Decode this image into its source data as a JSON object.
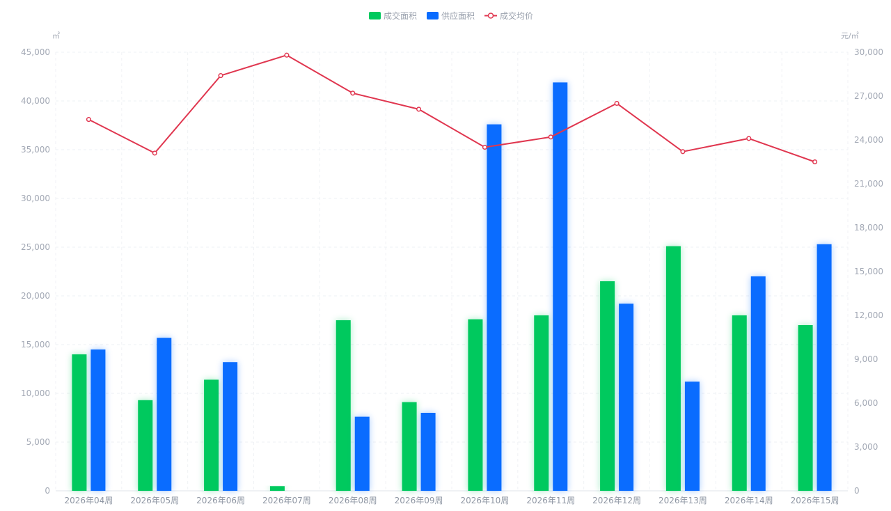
{
  "chart_data": {
    "type": "bar",
    "categories": [
      "2026年04周",
      "2026年05周",
      "2026年06周",
      "2026年07周",
      "2026年08周",
      "2026年09周",
      "2026年10周",
      "2026年11周",
      "2026年12周",
      "2026年13周",
      "2026年14周",
      "2026年15周"
    ],
    "series": [
      {
        "name": "成交面积",
        "type": "bar",
        "axis": "left",
        "color": "#00c95e",
        "values": [
          14000,
          9300,
          11400,
          480,
          17500,
          9100,
          17600,
          18000,
          21500,
          25100,
          18000,
          17000
        ]
      },
      {
        "name": "供应面积",
        "type": "bar",
        "axis": "left",
        "color": "#0a6cff",
        "values": [
          14500,
          15700,
          13200,
          null,
          7600,
          8000,
          37600,
          41900,
          19200,
          11200,
          22000,
          25300
        ]
      },
      {
        "name": "成交均价",
        "type": "line",
        "axis": "right",
        "color": "#e0364f",
        "values": [
          25400,
          23100,
          28400,
          29800,
          27200,
          26100,
          23500,
          24200,
          26500,
          23200,
          24100,
          22500
        ]
      }
    ],
    "left_axis": {
      "unit": "㎡",
      "min": 0,
      "max": 45000,
      "step": 5000,
      "ticks": [
        "0",
        "5,000",
        "10,000",
        "15,000",
        "20,000",
        "25,000",
        "30,000",
        "35,000",
        "40,000",
        "45,000"
      ]
    },
    "right_axis": {
      "unit": "元/㎡",
      "min": 0,
      "max": 30000,
      "step": 3000,
      "ticks": [
        "0",
        "3,000",
        "6,000",
        "9,000",
        "12,000",
        "15,000",
        "18,000",
        "21,000",
        "24,000",
        "27,000",
        "30,000"
      ]
    },
    "legend_position": "top-center",
    "grid": true
  }
}
